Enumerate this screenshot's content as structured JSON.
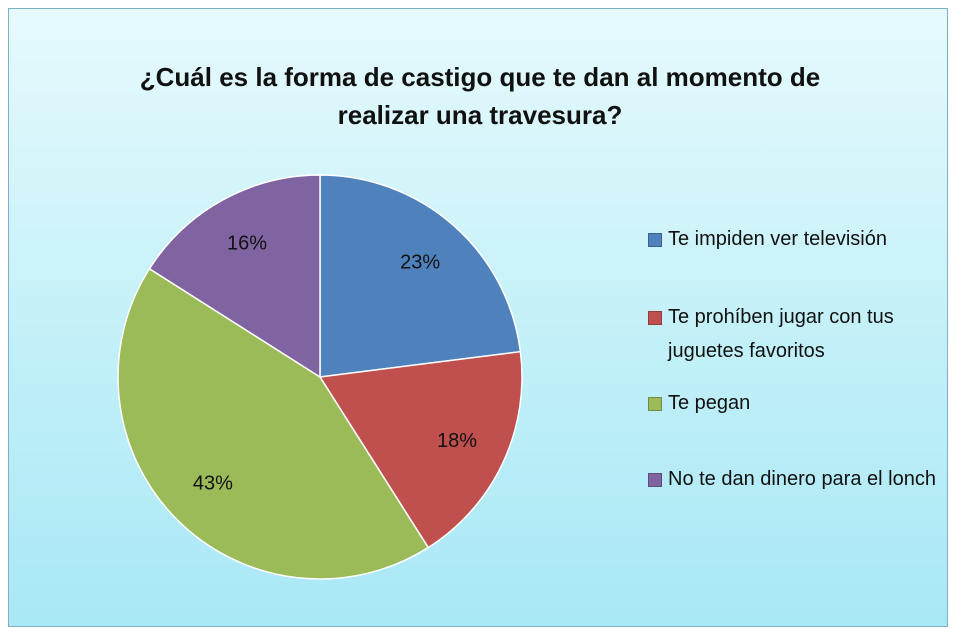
{
  "chart_data": {
    "type": "pie",
    "title": "¿Cuál es la forma de castigo que te dan al momento de realizar una travesura?",
    "categories": [
      "Te impiden ver televisión",
      "Te prohíben jugar con tus juguetes favoritos",
      "Te pegan",
      "No te dan dinero para el lonch"
    ],
    "values": [
      23,
      18,
      43,
      16
    ],
    "value_labels": [
      "23%",
      "18%",
      "43%",
      "16%"
    ],
    "colors": [
      "#4f81bd",
      "#c0504d",
      "#9bbb59",
      "#8064a2"
    ],
    "legend": "right"
  }
}
